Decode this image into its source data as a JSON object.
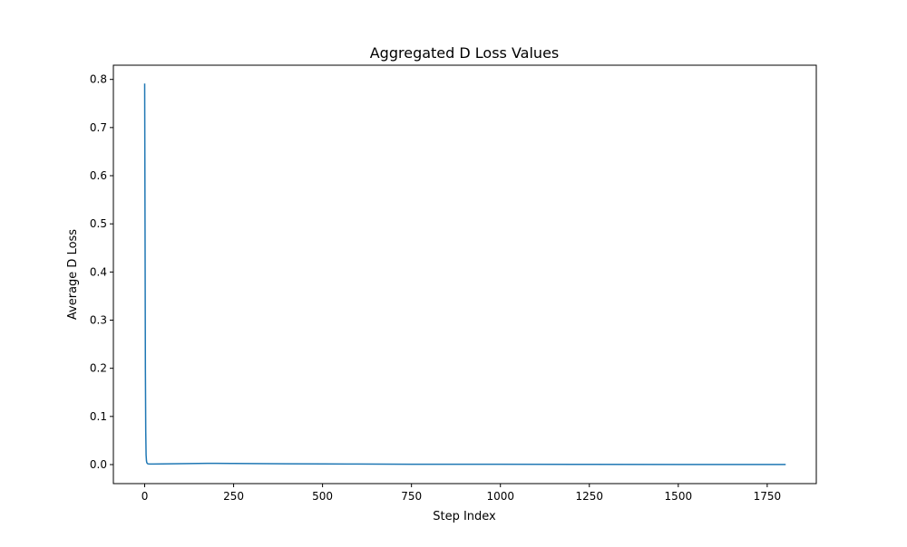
{
  "chart_data": {
    "type": "line",
    "title": "Aggregated D Loss Values",
    "xlabel": "Step Index",
    "ylabel": "Average D Loss",
    "xlim": [
      -88,
      1888
    ],
    "ylim": [
      -0.0395,
      0.8295
    ],
    "xticks": [
      0,
      250,
      500,
      750,
      1000,
      1250,
      1500,
      1750
    ],
    "yticks": [
      0.0,
      0.1,
      0.2,
      0.3,
      0.4,
      0.5,
      0.6,
      0.7,
      0.8
    ],
    "grid": false,
    "legend": "none",
    "series": [
      {
        "color": "#1f77b4",
        "x": [
          0,
          1,
          2,
          3,
          4,
          5,
          6,
          8,
          10,
          15,
          25,
          50,
          100,
          150,
          175,
          200,
          250,
          300,
          400,
          500,
          600,
          750,
          1000,
          1250,
          1500,
          1750,
          1800
        ],
        "y": [
          0.79,
          0.5,
          0.2,
          0.07,
          0.02,
          0.008,
          0.004,
          0.002,
          0.0015,
          0.0012,
          0.0012,
          0.0013,
          0.0018,
          0.0024,
          0.0026,
          0.0026,
          0.0024,
          0.0021,
          0.0017,
          0.0014,
          0.0011,
          0.0008,
          0.0006,
          0.0004,
          0.0003,
          0.0002,
          0.0002
        ]
      }
    ]
  }
}
